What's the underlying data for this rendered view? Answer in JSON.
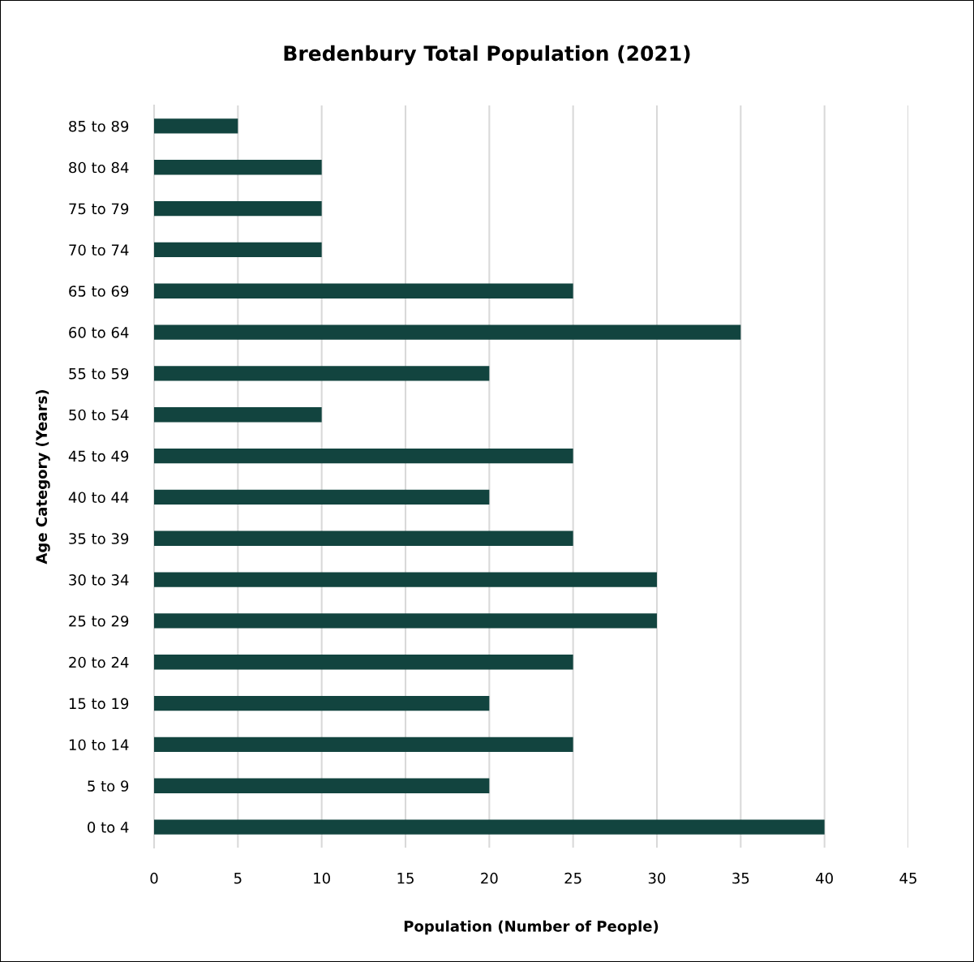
{
  "chart_data": {
    "type": "bar",
    "orientation": "horizontal",
    "title": "Bredenbury Total Population (2021)",
    "xlabel": "Population (Number of People)",
    "ylabel": "Age Category (Years)",
    "categories": [
      "85 to 89",
      "80 to 84",
      "75 to 79",
      "70 to 74",
      "65 to 69",
      "60 to 64",
      "55 to 59",
      "50 to 54",
      "45 to 49",
      "40 to 44",
      "35 to 39",
      "30 to 34",
      "25 to 29",
      "20 to 24",
      "15 to 19",
      "10 to 14",
      "5 to 9",
      "0 to 4"
    ],
    "values": [
      5,
      10,
      10,
      10,
      25,
      35,
      20,
      10,
      25,
      20,
      25,
      30,
      30,
      25,
      20,
      25,
      20,
      40
    ],
    "color": "#12443f",
    "xlim": [
      0,
      45
    ],
    "xticks": [
      0,
      5,
      10,
      15,
      20,
      25,
      30,
      35,
      40,
      45
    ],
    "grid": "x",
    "legend": false
  }
}
